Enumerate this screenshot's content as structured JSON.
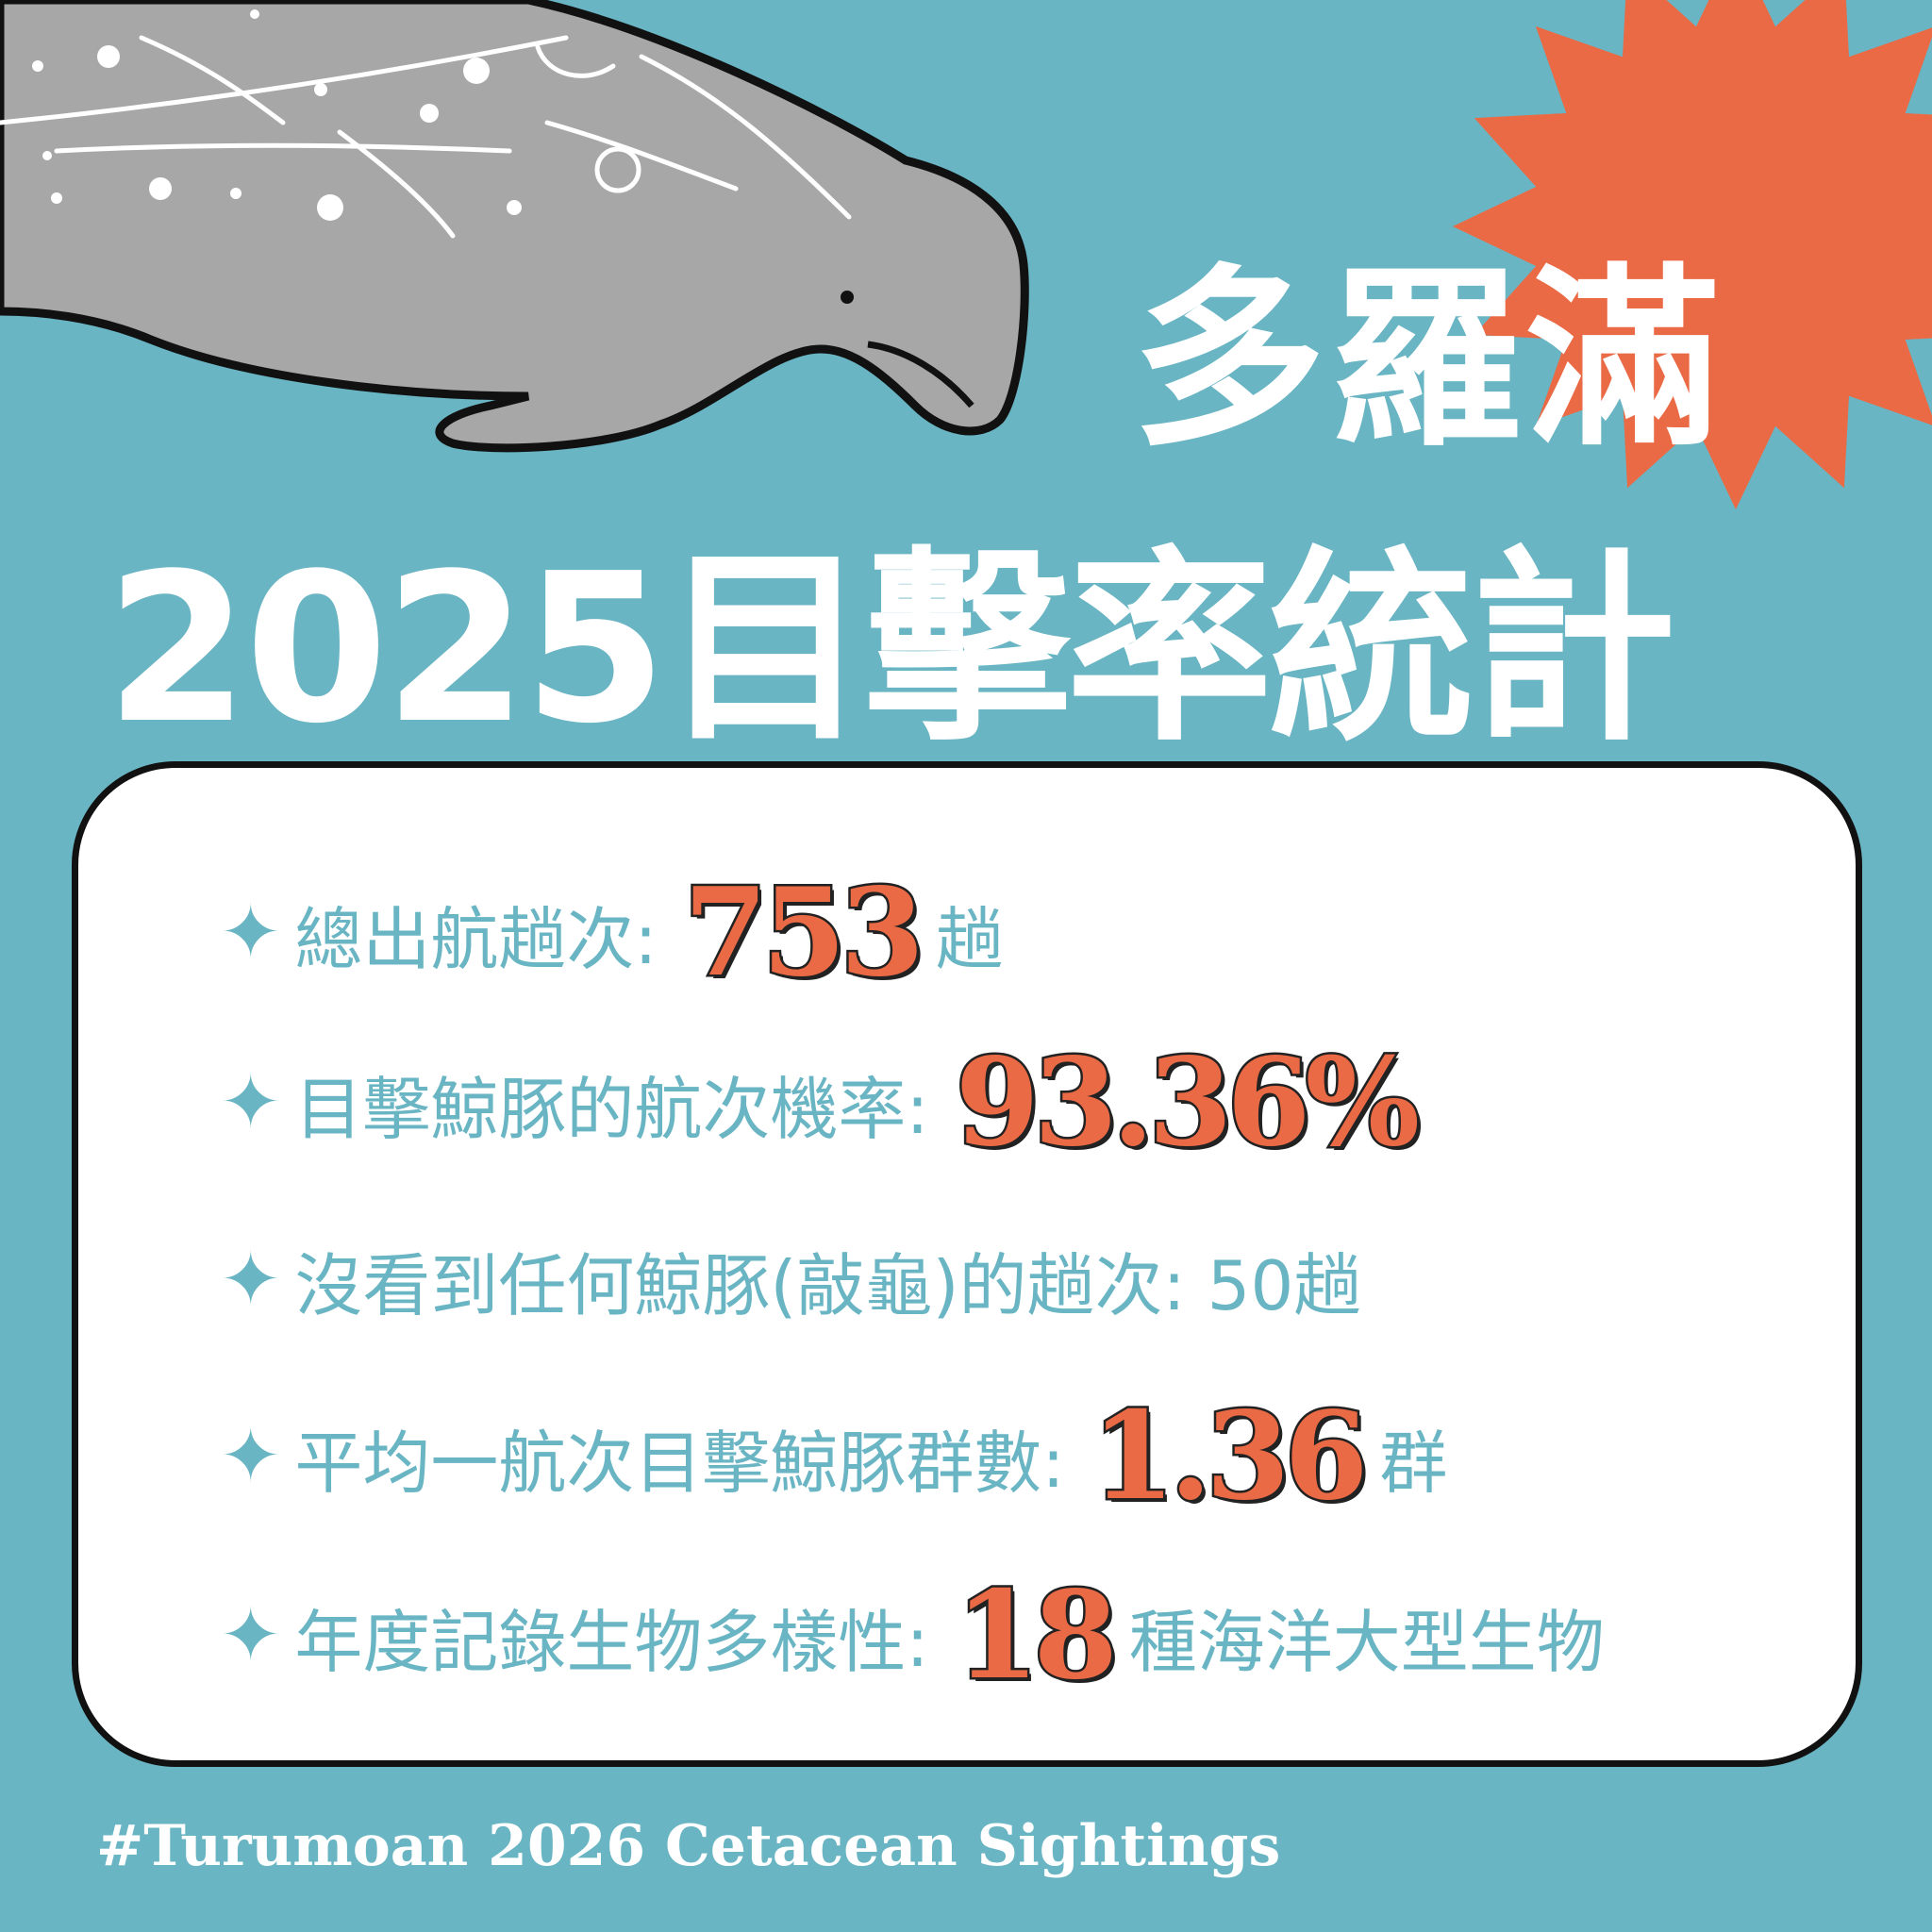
{
  "colors": {
    "background": "#6ab5c3",
    "accent": "#ea6a45",
    "card": "#ffffff",
    "manatee": "#a7a7a7"
  },
  "header": {
    "place": "多羅滿",
    "title": "2025目擊率統計"
  },
  "stats": [
    {
      "label": "總出航趟次:",
      "value": "753",
      "unit": "趟"
    },
    {
      "label": "目擊鯨豚的航次機率:",
      "value": "93.36%",
      "unit": ""
    },
    {
      "label": "沒看到任何鯨豚(敲龜)的趟次: 50趟",
      "value": "",
      "unit": ""
    },
    {
      "label": "平均一航次目擊鯨豚群數:",
      "value": "1.36",
      "unit": "群"
    },
    {
      "label": "年度記錄生物多樣性:",
      "value": "18",
      "unit": "種海洋大型生物"
    }
  ],
  "footer": {
    "hashtag": "#Turumoan 2026 Cetacean Sightings"
  },
  "icons": {
    "bullet": "sparkle-star-icon",
    "illustration": "manatee-illustration",
    "badge": "starburst-icon"
  }
}
